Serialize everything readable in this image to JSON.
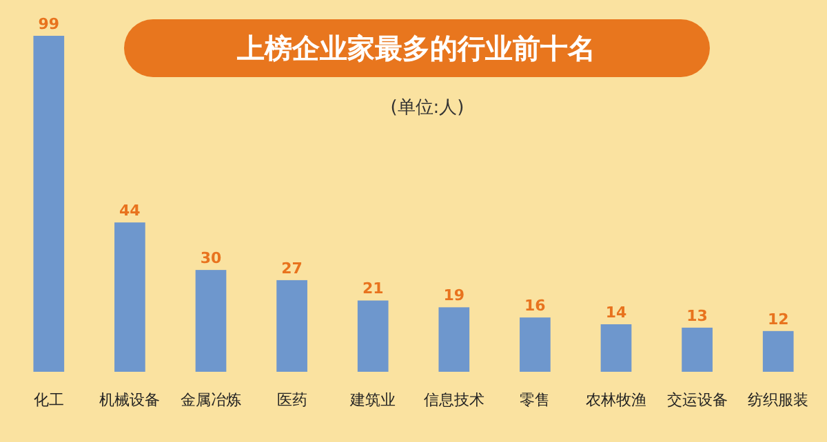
{
  "chart_data": {
    "type": "bar",
    "title": "上榜企业家最多的行业前十名",
    "subtitle": "(单位:人)",
    "categories": [
      "化工",
      "机械设备",
      "金属冶炼",
      "医药",
      "建筑业",
      "信息技术",
      "零售",
      "农林牧渔",
      "交运设备",
      "纺织服装"
    ],
    "values": [
      99,
      44,
      30,
      27,
      21,
      19,
      16,
      14,
      13,
      12
    ],
    "color": "#6e97cd",
    "data_labels": true
  }
}
